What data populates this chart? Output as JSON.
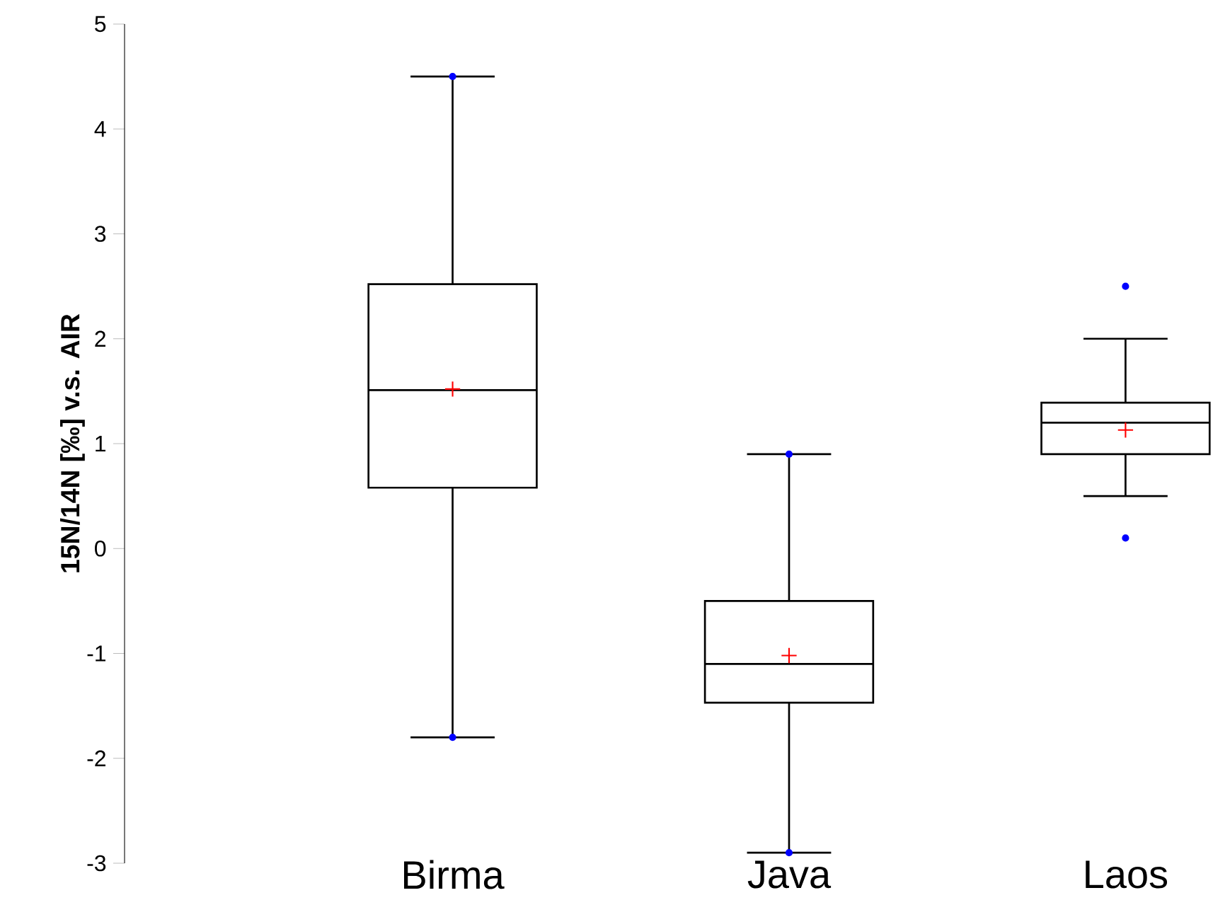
{
  "chart_data": {
    "type": "box",
    "ylabel": "15N/14N [‰] v.s. AIR",
    "categories": [
      "Birma",
      "Java",
      "Laos"
    ],
    "boxes": [
      {
        "low": -1.8,
        "q1": 0.58,
        "median": 1.51,
        "q3": 2.52,
        "high": 4.5,
        "mean": 1.52,
        "outliers": [
          4.5,
          -1.8
        ]
      },
      {
        "low": -2.9,
        "q1": -1.47,
        "median": -1.1,
        "q3": -0.5,
        "high": 0.9,
        "mean": -1.02,
        "outliers": [
          0.9,
          -2.9
        ]
      },
      {
        "low": 0.5,
        "q1": 0.9,
        "median": 1.2,
        "q3": 1.39,
        "high": 2.0,
        "mean": 1.13,
        "outliers": [
          2.5,
          0.1
        ]
      }
    ],
    "ylim": [
      -3,
      5
    ],
    "yticks": [
      -3,
      -2,
      -1,
      0,
      1,
      2,
      3,
      4,
      5
    ],
    "grid": false
  }
}
